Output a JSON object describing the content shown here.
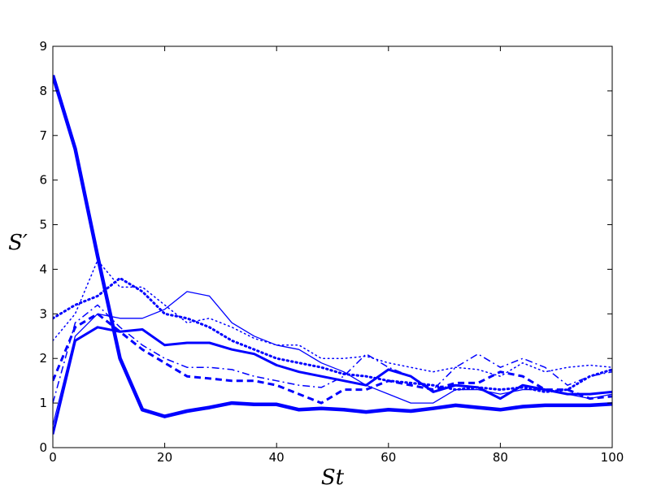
{
  "chart_data": {
    "type": "line",
    "x_label": "St",
    "y_label": "S′",
    "x": [
      0,
      4,
      8,
      12,
      16,
      20,
      24,
      28,
      32,
      36,
      40,
      44,
      48,
      52,
      56,
      60,
      64,
      68,
      72,
      76,
      80,
      84,
      88,
      92,
      96,
      100
    ],
    "xlim": [
      0,
      100
    ],
    "xticks": [
      0,
      20,
      40,
      60,
      80,
      100
    ],
    "ylim": [
      0,
      9
    ],
    "yticks": [
      0,
      1,
      2,
      3,
      4,
      5,
      6,
      7,
      8,
      9
    ],
    "grid": false,
    "series": [
      {
        "color": "#0000ff",
        "style": "solid",
        "linewidth": 4.5,
        "values": [
          8.35,
          6.7,
          4.3,
          2.0,
          0.85,
          0.7,
          0.82,
          0.9,
          1.0,
          0.97,
          0.97,
          0.85,
          0.88,
          0.85,
          0.8,
          0.85,
          0.82,
          0.88,
          0.95,
          0.9,
          0.85,
          0.92,
          0.95,
          0.95,
          0.95,
          0.98
        ]
      },
      {
        "color": "#0000ff",
        "style": "solid",
        "linewidth": 3,
        "values": [
          0.3,
          2.4,
          2.7,
          2.6,
          2.65,
          2.3,
          2.35,
          2.35,
          2.2,
          2.1,
          1.85,
          1.7,
          1.6,
          1.5,
          1.4,
          1.75,
          1.6,
          1.25,
          1.4,
          1.35,
          1.1,
          1.4,
          1.3,
          1.2,
          1.2,
          1.25
        ]
      },
      {
        "color": "#0000ff",
        "style": "solid",
        "linewidth": 1.3,
        "values": [
          0.5,
          2.5,
          3.0,
          2.9,
          2.9,
          3.1,
          3.5,
          3.4,
          2.8,
          2.5,
          2.3,
          2.2,
          1.9,
          1.7,
          1.4,
          1.2,
          1.0,
          1.0,
          1.3,
          1.3,
          1.2,
          1.3,
          1.3,
          1.2,
          1.1,
          1.2
        ]
      },
      {
        "color": "#0000ff",
        "style": "dotted",
        "linewidth": 3,
        "values": [
          2.9,
          3.2,
          3.4,
          3.8,
          3.5,
          3.0,
          2.9,
          2.7,
          2.4,
          2.2,
          2.0,
          1.9,
          1.8,
          1.65,
          1.6,
          1.5,
          1.45,
          1.4,
          1.3,
          1.35,
          1.3,
          1.35,
          1.25,
          1.3,
          1.6,
          1.75
        ]
      },
      {
        "color": "#0000ff",
        "style": "dotted",
        "linewidth": 1.5,
        "values": [
          2.4,
          3.0,
          4.2,
          3.6,
          3.6,
          3.2,
          2.8,
          2.9,
          2.7,
          2.45,
          2.3,
          2.3,
          2.0,
          2.0,
          2.05,
          1.9,
          1.8,
          1.7,
          1.8,
          1.75,
          1.6,
          1.9,
          1.7,
          1.8,
          1.85,
          1.8
        ]
      },
      {
        "color": "#0000ff",
        "style": "dashed",
        "linewidth": 3,
        "values": [
          1.5,
          2.7,
          3.0,
          2.6,
          2.2,
          1.9,
          1.6,
          1.55,
          1.5,
          1.5,
          1.4,
          1.2,
          1.0,
          1.3,
          1.3,
          1.5,
          1.4,
          1.3,
          1.45,
          1.45,
          1.7,
          1.6,
          1.3,
          1.3,
          1.1,
          1.15
        ]
      },
      {
        "color": "#0000ff",
        "style": "dashdot",
        "linewidth": 1.5,
        "values": [
          1.0,
          2.8,
          3.2,
          2.7,
          2.3,
          2.0,
          1.8,
          1.8,
          1.75,
          1.6,
          1.5,
          1.4,
          1.35,
          1.6,
          2.1,
          1.8,
          1.6,
          1.3,
          1.8,
          2.1,
          1.8,
          2.0,
          1.8,
          1.4,
          1.6,
          1.7
        ]
      }
    ]
  }
}
